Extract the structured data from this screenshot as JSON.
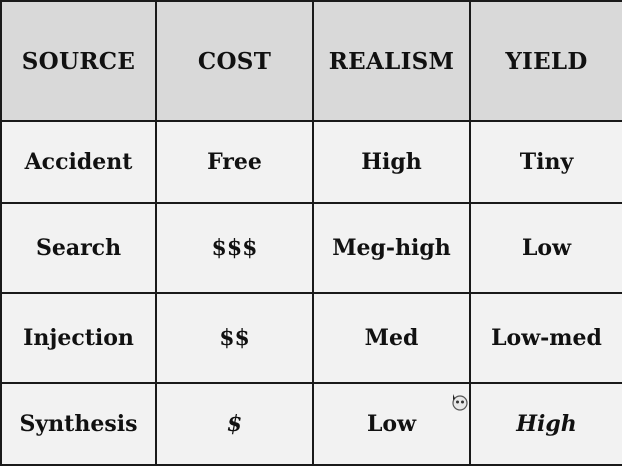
{
  "table": {
    "headers": [
      "SOURCE",
      "COST",
      "REALISM",
      "YIELD"
    ],
    "rows": [
      [
        "Accident",
        "Free",
        "High",
        "Tiny"
      ],
      [
        "Search",
        "$$$",
        "Meg-high",
        "Low"
      ],
      [
        "Injection",
        "$$",
        "Med",
        "Low-med"
      ],
      [
        "Synthesis",
        "$",
        "Low",
        "High"
      ]
    ]
  },
  "icons": {
    "cursor": "pointer-cursor-icon"
  }
}
